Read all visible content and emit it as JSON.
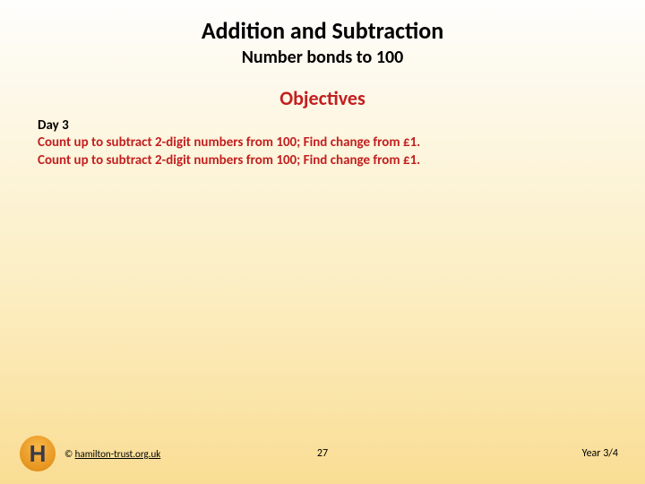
{
  "slide": {
    "title": "Addition and Subtraction",
    "subtitle": "Number bonds to 100",
    "objectives_heading": "Objectives",
    "day_label": "Day 3",
    "objectives": [
      "Count up to subtract 2-digit numbers from 100; Find change from £1.",
      "Count up to subtract 2-digit numbers from 100; Find change from £1."
    ]
  },
  "footer": {
    "logo_letter": "H",
    "copyright_prefix": "© ",
    "copyright_link": "hamilton-trust.org.uk",
    "page_number": "27",
    "year_label": "Year 3/4"
  },
  "colors": {
    "heading_red": "#c21f1f",
    "text_black": "#000000",
    "bg_top": "#fefefd",
    "bg_bottom": "#f9dd94",
    "logo_fill": "#e6951f",
    "logo_text": "#3a3a4a"
  }
}
